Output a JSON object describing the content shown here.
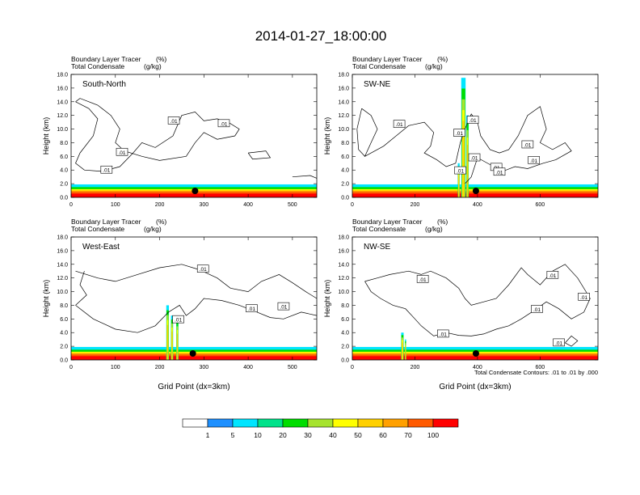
{
  "title": "2014-01-27_18:00:00",
  "contour_note": "Total Condensate Contours: .01 to .01 by .000",
  "colorbar": {
    "colors": [
      "#ffffff",
      "#1e90ff",
      "#00e5ff",
      "#00e28a",
      "#00dd00",
      "#a6e32e",
      "#ffff00",
      "#ffd000",
      "#ffa000",
      "#ff5a00",
      "#ff0000"
    ],
    "labels": [
      "1",
      "5",
      "10",
      "20",
      "30",
      "40",
      "50",
      "60",
      "70",
      "100"
    ]
  },
  "chart_data": [
    {
      "type": "heatmap",
      "panel_title": "South-North",
      "subtitle_left": [
        "Boundary Layer Tracer",
        "Total Condensate"
      ],
      "subtitle_units": [
        "(%)",
        "(g/kg)"
      ],
      "ylabel": "Height (km)",
      "xlabel": "",
      "ylim": [
        0,
        18
      ],
      "yticks": [
        "0.0",
        "2.0",
        "4.0",
        "6.0",
        "8.0",
        "10.0",
        "12.0",
        "14.0",
        "16.0",
        "18.0"
      ],
      "xlim": [
        0,
        555
      ],
      "xticks": [
        0,
        100,
        200,
        300,
        400,
        500
      ],
      "marker_x": 280,
      "contour_labels": [
        {
          "text": ".01",
          "x": 232,
          "y": 11.2
        },
        {
          "text": ".01",
          "x": 345,
          "y": 10.8
        },
        {
          "text": ".01",
          "x": 115,
          "y": 6.6
        },
        {
          "text": ".01",
          "x": 80,
          "y": 4.0
        }
      ]
    },
    {
      "type": "heatmap",
      "panel_title": "SW-NE",
      "subtitle_left": [
        "Boundary Layer Tracer",
        "Total Condensate"
      ],
      "subtitle_units": [
        "(%)",
        "(g/kg)"
      ],
      "ylabel": "Height (km)",
      "xlabel": "",
      "ylim": [
        0,
        18
      ],
      "yticks": [
        "0.0",
        "2.0",
        "4.0",
        "6.0",
        "8.0",
        "10.0",
        "12.0",
        "14.0",
        "16.0",
        "18.0"
      ],
      "xlim": [
        0,
        785
      ],
      "xticks": [
        0,
        200,
        400,
        600
      ],
      "marker_x": 395,
      "contour_labels": [
        {
          "text": ".01",
          "x": 385,
          "y": 11.3
        },
        {
          "text": ".01",
          "x": 150,
          "y": 10.7
        },
        {
          "text": ".01",
          "x": 342,
          "y": 9.4
        },
        {
          "text": ".01",
          "x": 560,
          "y": 7.7
        },
        {
          "text": ".01",
          "x": 580,
          "y": 5.4
        },
        {
          "text": ".01",
          "x": 390,
          "y": 5.8
        },
        {
          "text": ".01",
          "x": 345,
          "y": 3.9
        },
        {
          "text": ".01",
          "x": 460,
          "y": 4.4
        },
        {
          "text": ".01",
          "x": 470,
          "y": 3.7
        }
      ]
    },
    {
      "type": "heatmap",
      "panel_title": "West-East",
      "subtitle_left": [
        "Boundary Layer Tracer",
        "Total Condensate"
      ],
      "subtitle_units": [
        "(%)",
        "(g/kg)"
      ],
      "ylabel": "Height (km)",
      "xlabel": "Grid Point (dx=3km)",
      "ylim": [
        0,
        18
      ],
      "yticks": [
        "0.0",
        "2.0",
        "4.0",
        "6.0",
        "8.0",
        "10.0",
        "12.0",
        "14.0",
        "16.0",
        "18.0"
      ],
      "xlim": [
        0,
        555
      ],
      "xticks": [
        0,
        100,
        200,
        300,
        400,
        500
      ],
      "marker_x": 275,
      "contour_labels": [
        {
          "text": ".01",
          "x": 298,
          "y": 13.3
        },
        {
          "text": ".01",
          "x": 408,
          "y": 7.5
        },
        {
          "text": ".01",
          "x": 480,
          "y": 7.8
        },
        {
          "text": ".01",
          "x": 242,
          "y": 5.9
        }
      ]
    },
    {
      "type": "heatmap",
      "panel_title": "NW-SE",
      "subtitle_left": [
        "Boundary Layer Tracer",
        "Total Condensate"
      ],
      "subtitle_units": [
        "(%)",
        "(g/kg)"
      ],
      "ylabel": "Height (km)",
      "xlabel": "Grid Point (dx=3km)",
      "ylim": [
        0,
        18
      ],
      "yticks": [
        "0.0",
        "2.0",
        "4.0",
        "6.0",
        "8.0",
        "10.0",
        "12.0",
        "14.0",
        "16.0",
        "18.0"
      ],
      "xlim": [
        0,
        785
      ],
      "xticks": [
        0,
        200,
        400,
        600
      ],
      "marker_x": 395,
      "contour_labels": [
        {
          "text": ".01",
          "x": 225,
          "y": 11.8
        },
        {
          "text": ".01",
          "x": 640,
          "y": 12.4
        },
        {
          "text": ".01",
          "x": 740,
          "y": 9.2
        },
        {
          "text": ".01",
          "x": 590,
          "y": 7.4
        },
        {
          "text": ".01",
          "x": 290,
          "y": 3.8
        },
        {
          "text": ".01",
          "x": 660,
          "y": 2.5
        }
      ]
    }
  ]
}
